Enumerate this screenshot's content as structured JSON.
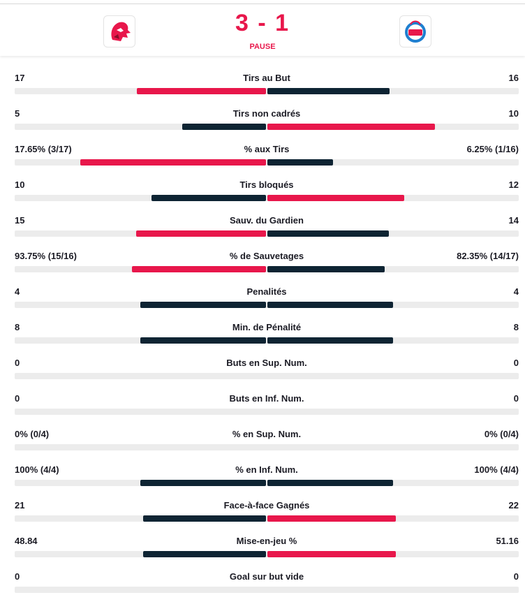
{
  "header": {
    "score": "3 - 1",
    "status": "PAUSE"
  },
  "colors": {
    "leader": "#e8174b",
    "other": "#0e2433",
    "track": "#ececec"
  },
  "stats": [
    {
      "label": "Tirs au But",
      "home": 17,
      "away": 16
    },
    {
      "label": "Tirs non cadrés",
      "home": 5,
      "away": 10
    },
    {
      "label": "% aux Tirs",
      "home": {
        "value": 17.65,
        "label": "17.65% (3/17)"
      },
      "away": {
        "value": 6.25,
        "label": "6.25% (1/16)"
      }
    },
    {
      "label": "Tirs bloqués",
      "home": 10,
      "away": 12
    },
    {
      "label": "Sauv. du Gardien",
      "home": 15,
      "away": 14
    },
    {
      "label": "% de Sauvetages",
      "home": {
        "value": 93.75,
        "label": "93.75% (15/16)"
      },
      "away": {
        "value": 82.35,
        "label": "82.35% (14/17)"
      }
    },
    {
      "label": "Penalités",
      "home": 4,
      "away": 4
    },
    {
      "label": "Min. de Pénalité",
      "home": 8,
      "away": 8
    },
    {
      "label": "Buts en Sup. Num.",
      "home": 0,
      "away": 0
    },
    {
      "label": "Buts en Inf. Num.",
      "home": 0,
      "away": 0
    },
    {
      "label": "% en Sup. Num.",
      "home": {
        "value": 0,
        "label": "0% (0/4)"
      },
      "away": {
        "value": 0,
        "label": "0% (0/4)"
      }
    },
    {
      "label": "% en Inf. Num.",
      "home": {
        "value": 100,
        "label": "100% (4/4)"
      },
      "away": {
        "value": 100,
        "label": "100% (4/4)"
      }
    },
    {
      "label": "Face-à-face Gagnés",
      "home": 21,
      "away": 22
    },
    {
      "label": "Mise-en-jeu %",
      "home": 48.84,
      "away": 51.16
    },
    {
      "label": "Goal sur but vide",
      "home": 0,
      "away": 0
    }
  ]
}
